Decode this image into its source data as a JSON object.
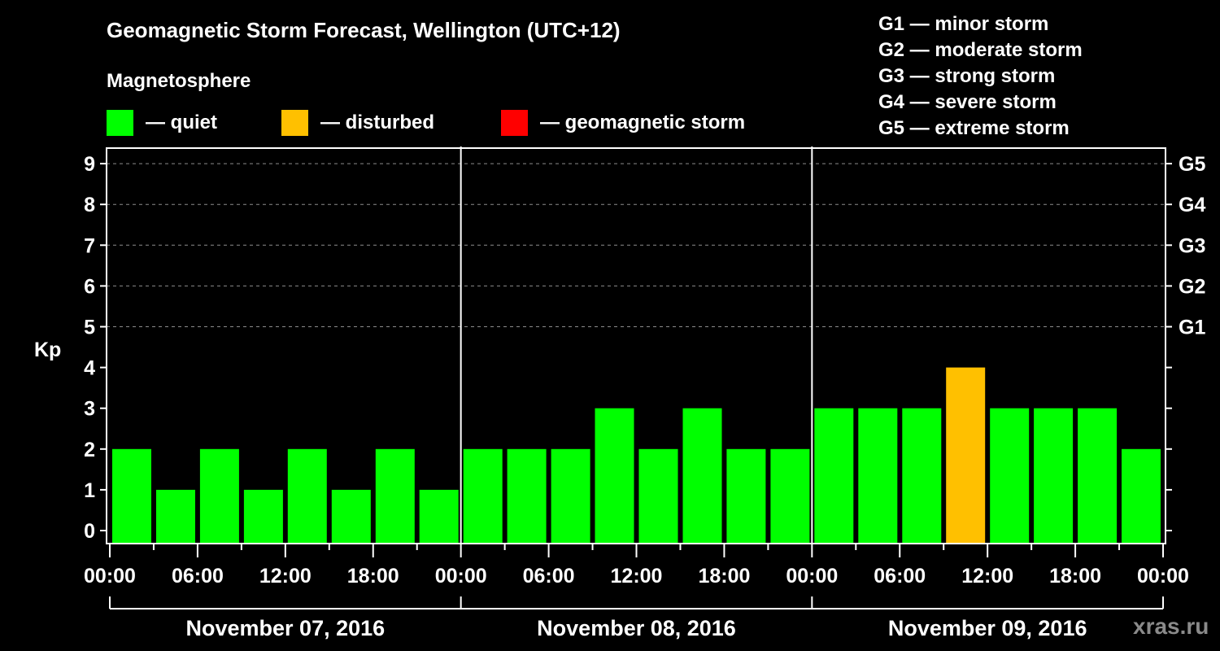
{
  "title": "Geomagnetic Storm Forecast, Wellington (UTC+12)",
  "subtitle": "Magnetosphere",
  "legend": [
    {
      "label": "— quiet",
      "color": "#00ff00"
    },
    {
      "label": "— disturbed",
      "color": "#ffc000"
    },
    {
      "label": "— geomagnetic storm",
      "color": "#ff0000"
    }
  ],
  "g_scale_legend": [
    "G1 — minor storm",
    "G2 — moderate storm",
    "G3 — strong storm",
    "G4 — severe storm",
    "G5 — extreme storm"
  ],
  "watermark": "xras.ru",
  "chart_data": {
    "type": "bar",
    "title": "Geomagnetic Storm Forecast, Wellington (UTC+12)",
    "xlabel": "",
    "ylabel": "Kp",
    "ylim": [
      0,
      9
    ],
    "yticks": [
      0,
      1,
      2,
      3,
      4,
      5,
      6,
      7,
      8,
      9
    ],
    "right_axis_ticks": [
      {
        "value": 5,
        "label": "G1"
      },
      {
        "value": 6,
        "label": "G2"
      },
      {
        "value": 7,
        "label": "G3"
      },
      {
        "value": 8,
        "label": "G4"
      },
      {
        "value": 9,
        "label": "G5"
      }
    ],
    "grid": {
      "y_dashed_at": [
        5,
        6,
        7,
        8,
        9
      ]
    },
    "xtick_labels": [
      "00:00",
      "06:00",
      "12:00",
      "18:00",
      "00:00",
      "06:00",
      "12:00",
      "18:00",
      "00:00",
      "06:00",
      "12:00",
      "18:00",
      "00:00"
    ],
    "days": [
      "November 07, 2016",
      "November 08, 2016",
      "November 09, 2016"
    ],
    "interval_hours": 3,
    "categories": [
      "Nov 07 00-03",
      "Nov 07 03-06",
      "Nov 07 06-09",
      "Nov 07 09-12",
      "Nov 07 12-15",
      "Nov 07 15-18",
      "Nov 07 18-21",
      "Nov 07 21-24",
      "Nov 08 00-03",
      "Nov 08 03-06",
      "Nov 08 06-09",
      "Nov 08 09-12",
      "Nov 08 12-15",
      "Nov 08 15-18",
      "Nov 08 18-21",
      "Nov 08 21-24",
      "Nov 09 00-03",
      "Nov 09 03-06",
      "Nov 09 06-09",
      "Nov 09 09-12",
      "Nov 09 12-15",
      "Nov 09 15-18",
      "Nov 09 18-21",
      "Nov 09 21-24"
    ],
    "values": [
      2,
      1,
      2,
      1,
      2,
      1,
      2,
      1,
      2,
      2,
      2,
      3,
      2,
      3,
      2,
      2,
      3,
      3,
      3,
      4,
      3,
      3,
      3,
      2
    ],
    "status": [
      "quiet",
      "quiet",
      "quiet",
      "quiet",
      "quiet",
      "quiet",
      "quiet",
      "quiet",
      "quiet",
      "quiet",
      "quiet",
      "quiet",
      "quiet",
      "quiet",
      "quiet",
      "quiet",
      "quiet",
      "quiet",
      "quiet",
      "disturbed",
      "quiet",
      "quiet",
      "quiet",
      "quiet"
    ],
    "colors": {
      "quiet": "#00ff00",
      "disturbed": "#ffc000",
      "storm": "#ff0000"
    },
    "legend_position": "top"
  }
}
